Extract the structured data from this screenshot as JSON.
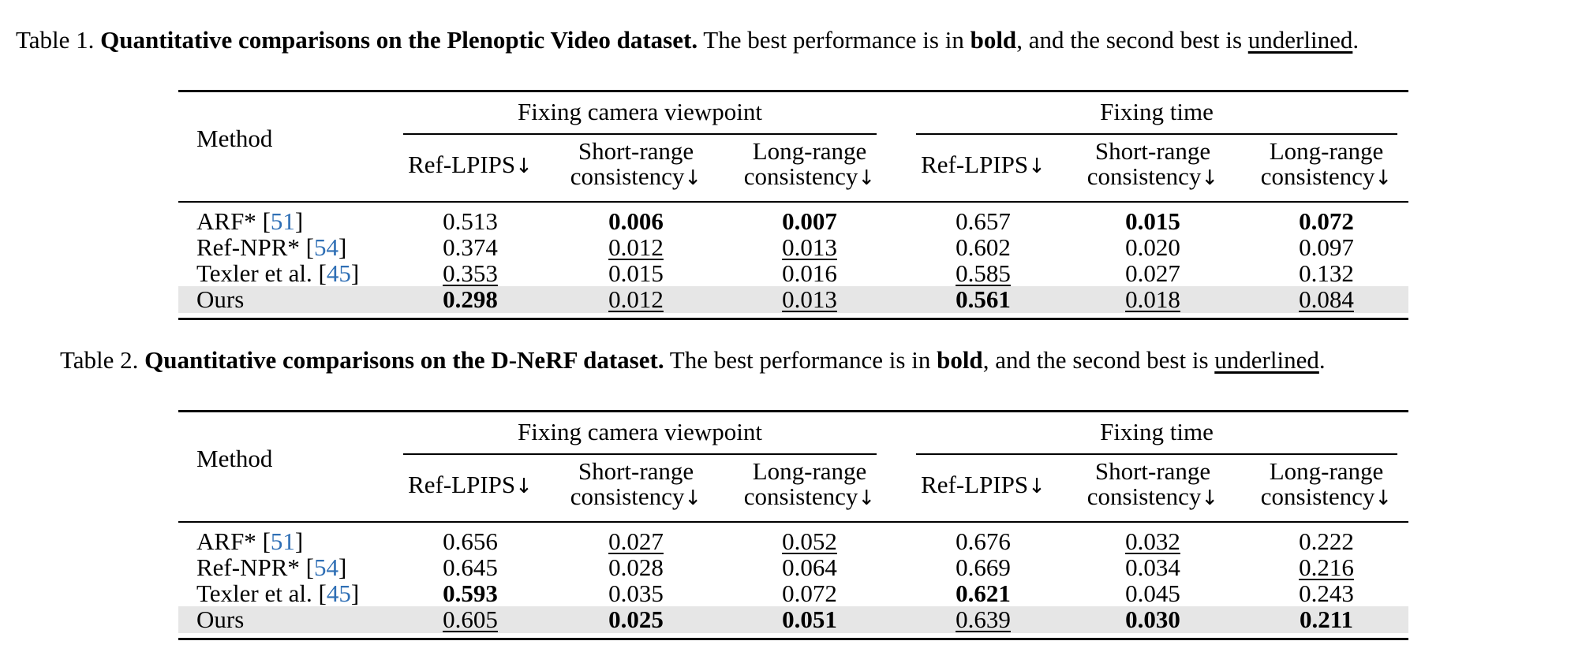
{
  "captions": [
    {
      "label": "Table 1.",
      "title": "Quantitative comparisons on the Plenoptic Video dataset.",
      "text_a": "The best performance is in",
      "bold_word": "bold",
      "text_b": ", and the second best is",
      "underline_word": "underlined",
      "end": "."
    },
    {
      "label": "Table 2.",
      "title": "Quantitative comparisons on the D-NeRF dataset.",
      "text_a": "The best performance is in",
      "bold_word": "bold",
      "text_b": ", and the second best is",
      "underline_word": "underlined",
      "end": "."
    }
  ],
  "header": {
    "method": "Method",
    "group1": "Fixing camera viewpoint",
    "group2": "Fixing time",
    "col_ref": "Ref-LPIPS",
    "col_short_1": "Short-range",
    "col_short_2": "consistency",
    "col_long_1": "Long-range",
    "col_long_2": "consistency",
    "arrow": "↓"
  },
  "tables": [
    {
      "rows": [
        {
          "method": "ARF*",
          "ref_open": " [",
          "ref": "51",
          "ref_close": "]",
          "values": [
            "0.513",
            "0.006",
            "0.007",
            "0.657",
            "0.015",
            "0.072"
          ],
          "style": [
            "",
            "b",
            "b",
            "",
            "b",
            "b"
          ]
        },
        {
          "method": "Ref-NPR*",
          "ref_open": " [",
          "ref": "54",
          "ref_close": "]",
          "values": [
            "0.374",
            "0.012",
            "0.013",
            "0.602",
            "0.020",
            "0.097"
          ],
          "style": [
            "",
            "u",
            "u",
            "",
            "",
            ""
          ]
        },
        {
          "method": "Texler et al.",
          "ref_open": " [",
          "ref": "45",
          "ref_close": "]",
          "values": [
            "0.353",
            "0.015",
            "0.016",
            "0.585",
            "0.027",
            "0.132"
          ],
          "style": [
            "u",
            "",
            "",
            "u",
            "",
            ""
          ]
        },
        {
          "method": "Ours",
          "ref_open": "",
          "ref": "",
          "ref_close": "",
          "values": [
            "0.298",
            "0.012",
            "0.013",
            "0.561",
            "0.018",
            "0.084"
          ],
          "style": [
            "b",
            "u",
            "u",
            "b",
            "u",
            "u"
          ]
        }
      ]
    },
    {
      "rows": [
        {
          "method": "ARF*",
          "ref_open": " [",
          "ref": "51",
          "ref_close": "]",
          "values": [
            "0.656",
            "0.027",
            "0.052",
            "0.676",
            "0.032",
            "0.222"
          ],
          "style": [
            "",
            "u",
            "u",
            "",
            "u",
            ""
          ]
        },
        {
          "method": "Ref-NPR*",
          "ref_open": " [",
          "ref": "54",
          "ref_close": "]",
          "values": [
            "0.645",
            "0.028",
            "0.064",
            "0.669",
            "0.034",
            "0.216"
          ],
          "style": [
            "",
            "",
            "",
            "",
            "",
            "u"
          ]
        },
        {
          "method": "Texler et al.",
          "ref_open": " [",
          "ref": "45",
          "ref_close": "]",
          "values": [
            "0.593",
            "0.035",
            "0.072",
            "0.621",
            "0.045",
            "0.243"
          ],
          "style": [
            "b",
            "",
            "",
            "b",
            "",
            ""
          ]
        },
        {
          "method": "Ours",
          "ref_open": "",
          "ref": "",
          "ref_close": "",
          "values": [
            "0.605",
            "0.025",
            "0.051",
            "0.639",
            "0.030",
            "0.211"
          ],
          "style": [
            "u",
            "b",
            "b",
            "u",
            "b",
            "b"
          ]
        }
      ]
    }
  ]
}
